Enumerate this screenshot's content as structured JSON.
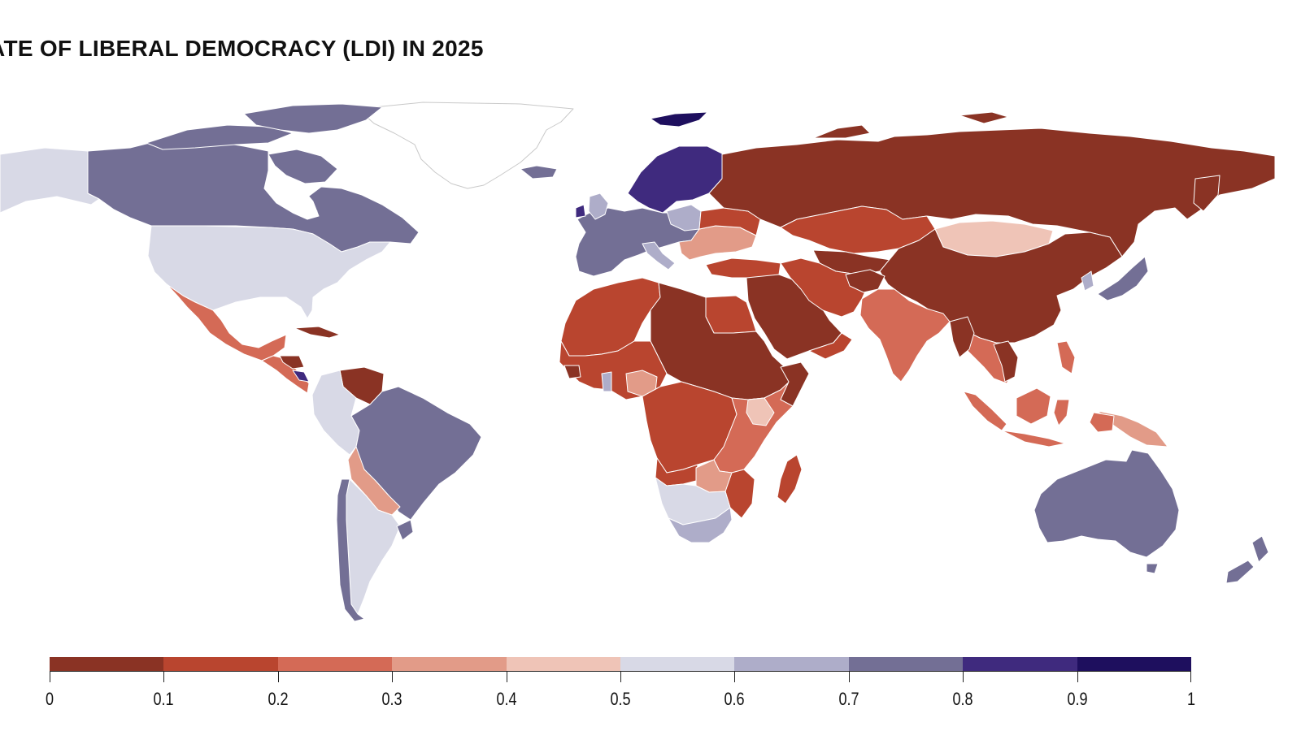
{
  "title": "ATE OF LIBERAL DEMOCRACY (LDI) IN 2025",
  "map": {
    "no_data_color": "#ffffff",
    "border_color": "#ffffff",
    "regions": [
      {
        "name": "greenland",
        "ldi_class": "no-data"
      },
      {
        "name": "alaska",
        "ldi_class": "0.5-0.6"
      },
      {
        "name": "canada",
        "ldi_class": "0.7-0.8"
      },
      {
        "name": "united-states",
        "ldi_class": "0.5-0.6"
      },
      {
        "name": "mexico",
        "ldi_class": "0.2-0.3"
      },
      {
        "name": "central-america",
        "ldi_class": "0.2-0.3"
      },
      {
        "name": "cuba",
        "ldi_class": "0-0.1"
      },
      {
        "name": "venezuela",
        "ldi_class": "0-0.1"
      },
      {
        "name": "brazil",
        "ldi_class": "0.7-0.8"
      },
      {
        "name": "andes",
        "ldi_class": "0.5-0.6"
      },
      {
        "name": "bolivia",
        "ldi_class": "0.3-0.4"
      },
      {
        "name": "argentina",
        "ldi_class": "0.5-0.6"
      },
      {
        "name": "chile",
        "ldi_class": "0.7-0.8"
      },
      {
        "name": "uruguay",
        "ldi_class": "0.7-0.8"
      },
      {
        "name": "iceland",
        "ldi_class": "0.7-0.8"
      },
      {
        "name": "svalbard",
        "ldi_class": "0.9-1"
      },
      {
        "name": "scandinavia",
        "ldi_class": "0.8-0.9"
      },
      {
        "name": "western-europe",
        "ldi_class": "0.7-0.8"
      },
      {
        "name": "eastern-europe",
        "ldi_class": "0.3-0.4"
      },
      {
        "name": "russia",
        "ldi_class": "0-0.1"
      },
      {
        "name": "kazakhstan",
        "ldi_class": "0.1-0.2"
      },
      {
        "name": "mongolia",
        "ldi_class": "0.4-0.5"
      },
      {
        "name": "china",
        "ldi_class": "0-0.1"
      },
      {
        "name": "japan",
        "ldi_class": "0.7-0.8"
      },
      {
        "name": "middle-east",
        "ldi_class": "0-0.1"
      },
      {
        "name": "iran",
        "ldi_class": "0.1-0.2"
      },
      {
        "name": "india",
        "ldi_class": "0.2-0.3"
      },
      {
        "name": "southeast-asia",
        "ldi_class": "0.2-0.3"
      },
      {
        "name": "indonesia",
        "ldi_class": "0.2-0.3"
      },
      {
        "name": "papua-new-guinea",
        "ldi_class": "0.3-0.4"
      },
      {
        "name": "australia",
        "ldi_class": "0.7-0.8"
      },
      {
        "name": "new-zealand",
        "ldi_class": "0.7-0.8"
      },
      {
        "name": "north-africa",
        "ldi_class": "0.1-0.2"
      },
      {
        "name": "sahel",
        "ldi_class": "0-0.1"
      },
      {
        "name": "west-africa",
        "ldi_class": "0.1-0.2"
      },
      {
        "name": "central-africa",
        "ldi_class": "0.1-0.2"
      },
      {
        "name": "east-africa",
        "ldi_class": "0.2-0.3"
      },
      {
        "name": "southern-africa",
        "ldi_class": "0.5-0.6"
      },
      {
        "name": "south-africa",
        "ldi_class": "0.6-0.7"
      },
      {
        "name": "madagascar",
        "ldi_class": "0.1-0.2"
      }
    ]
  },
  "legend": {
    "classes": [
      {
        "range": "0-0.1",
        "color": "#8a3324"
      },
      {
        "range": "0.1-0.2",
        "color": "#b9452f"
      },
      {
        "range": "0.2-0.3",
        "color": "#d46a56"
      },
      {
        "range": "0.3-0.4",
        "color": "#e29b88"
      },
      {
        "range": "0.4-0.5",
        "color": "#efc4b7"
      },
      {
        "range": "0.5-0.6",
        "color": "#d8d9e6"
      },
      {
        "range": "0.6-0.7",
        "color": "#aeadc9"
      },
      {
        "range": "0.7-0.8",
        "color": "#736f95"
      },
      {
        "range": "0.8-0.9",
        "color": "#3f2a7e"
      },
      {
        "range": "0.9-1",
        "color": "#1e0f5e"
      }
    ],
    "tick_labels": [
      "0",
      "0.1",
      "0.2",
      "0.3",
      "0.4",
      "0.5",
      "0.6",
      "0.7",
      "0.8",
      "0.9",
      "1"
    ]
  }
}
